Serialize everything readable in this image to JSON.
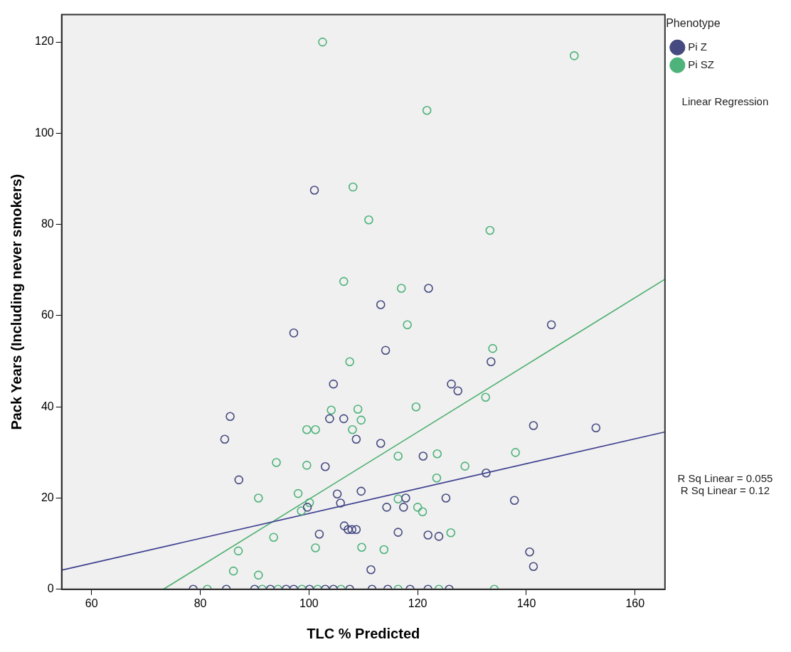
{
  "chart_data": {
    "type": "scatter",
    "xlabel": "TLC % Predicted",
    "ylabel": "Pack Years (Including never smokers)",
    "legend_title": "Phenotype",
    "legend": "top right",
    "grid": false,
    "marker": "circle",
    "xlim": [
      54.5,
      165.5
    ],
    "xticks": [
      60,
      80,
      100,
      120,
      140,
      160
    ],
    "ylim": [
      0,
      126
    ],
    "yticks": [
      0,
      20,
      40,
      60,
      80,
      100,
      120
    ],
    "annotations": [
      "Linear Regression",
      "R Sq Linear = 0.055",
      "R Sq Linear = 0.12"
    ],
    "series": [
      {
        "name": "Pi Z",
        "color": "#454a80",
        "x": [
          101,
          122,
          113.2,
          97.2,
          104.5,
          85.5,
          84.5,
          103.8,
          106.4,
          108.7,
          103,
          87.1,
          105.2,
          105.8,
          109.6,
          99.7,
          106.5,
          107.2,
          107.9,
          108.7,
          101.9,
          114.1,
          133.5,
          144.6,
          126.2,
          127.4,
          141.3,
          152.8,
          113.2,
          121,
          132.6,
          117.8,
          125.2,
          137.8,
          114.3,
          117.4,
          116.4,
          121.9,
          123.9,
          140.6,
          141.3,
          111.4,
          78.7,
          84.8,
          90,
          92.9,
          95.8,
          97.2,
          100.1,
          103,
          104.5,
          107.5,
          111.6,
          114.5,
          118.6,
          121.9,
          125.8
        ],
        "values": [
          87.5,
          66,
          62.4,
          56.2,
          45,
          37.9,
          32.9,
          37.4,
          37.4,
          32.9,
          26.9,
          24,
          20.9,
          18.9,
          21.5,
          18,
          13.9,
          13.1,
          13.1,
          13.1,
          12.1,
          52.4,
          49.9,
          58,
          45,
          43.5,
          35.9,
          35.4,
          32,
          29.2,
          25.5,
          20,
          20,
          19.5,
          18,
          18,
          12.5,
          11.9,
          11.6,
          8.2,
          5,
          4.3,
          0,
          0,
          0,
          0,
          0,
          0,
          0,
          0,
          0,
          0,
          0,
          0,
          0,
          0,
          0
        ]
      },
      {
        "name": "Pi SZ",
        "color": "#4db37a",
        "x": [
          102.5,
          108.1,
          106.4,
          148.8,
          121.7,
          111,
          133.3,
          117,
          107.5,
          104.1,
          109,
          99.6,
          101.2,
          108,
          109.6,
          94,
          99.6,
          98,
          90.7,
          98.6,
          100.1,
          93.5,
          101.2,
          109.7,
          87,
          86.1,
          90.7,
          118.1,
          133.8,
          132.5,
          119.7,
          138,
          116.4,
          123.6,
          128.7,
          123.5,
          116.4,
          120,
          120.9,
          126.1,
          113.8,
          81.3,
          91.4,
          94.3,
          98.7,
          101.6,
          105.9,
          116.4,
          123.9,
          134.1
        ],
        "values": [
          120,
          88.2,
          67.5,
          117,
          105,
          81,
          78.7,
          66,
          49.9,
          39.3,
          39.5,
          35,
          35,
          35,
          37.1,
          27.8,
          27.2,
          21,
          20,
          17.2,
          19,
          11.4,
          9.1,
          9.2,
          8.4,
          4,
          3.1,
          58,
          52.8,
          42.1,
          40,
          30,
          29.2,
          29.7,
          27,
          24.4,
          19.8,
          18,
          17,
          12.4,
          8.7,
          0,
          0,
          0,
          0,
          0,
          0,
          0,
          0,
          0
        ]
      },
      {
        "type": "line",
        "marker": "none",
        "color": "#3d3f8f",
        "x": [
          54.5,
          165.5
        ],
        "values": [
          4.2,
          34.5
        ]
      },
      {
        "type": "line",
        "marker": "none",
        "color": "#4caf6e",
        "x": [
          73.2,
          165.5
        ],
        "values": [
          0,
          68
        ]
      }
    ]
  }
}
